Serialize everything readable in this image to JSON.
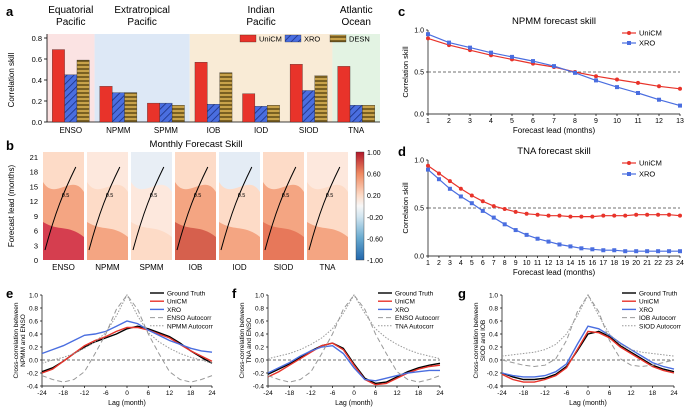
{
  "colors": {
    "unicm": "#e8332a",
    "xro": "#4a6ee0",
    "desn": "#c8a24a",
    "truth": "#000000",
    "ref": "#999999"
  },
  "chart_data": [
    {
      "panel": "a",
      "type": "bar",
      "ylabel": "Correlation skill",
      "ylim": [
        0,
        0.8
      ],
      "yticks": [
        0,
        0.2,
        0.4,
        0.6,
        0.8
      ],
      "categories": [
        "ENSO",
        "NPMM",
        "SPMM",
        "IOB",
        "IOD",
        "SIOD",
        "TNA"
      ],
      "regions": [
        {
          "label": [
            "Equatorial",
            "Pacific"
          ],
          "from": 0,
          "to": 0,
          "color": "#fbe3e3"
        },
        {
          "label": [
            "Extratropical",
            "Pacific"
          ],
          "from": 1,
          "to": 2,
          "color": "#dde8f6"
        },
        {
          "label": [
            "Indian",
            "Pacific"
          ],
          "from": 3,
          "to": 5,
          "color": "#f9ebd6"
        },
        {
          "label": [
            "Atlantic",
            "Ocean"
          ],
          "from": 6,
          "to": 6,
          "color": "#e3f3e3"
        }
      ],
      "series": [
        {
          "name": "UniCM",
          "values": [
            0.69,
            0.34,
            0.18,
            0.57,
            0.27,
            0.55,
            0.53
          ]
        },
        {
          "name": "XRO",
          "values": [
            0.45,
            0.28,
            0.18,
            0.17,
            0.15,
            0.3,
            0.16
          ]
        },
        {
          "name": "DESN",
          "values": [
            0.59,
            0.28,
            0.16,
            0.47,
            0.16,
            0.44,
            0.16
          ]
        }
      ]
    },
    {
      "panel": "b",
      "type": "heatmap",
      "title": "Monthly Forecast Skill",
      "ylabel": "Forecast lead (months)",
      "yticks": [
        0,
        3,
        6,
        9,
        12,
        15,
        18,
        21
      ],
      "columns": [
        "ENSO",
        "NPMM",
        "SPMM",
        "IOB",
        "IOD",
        "SIOD",
        "TNA"
      ],
      "colorbar": {
        "range": [
          -1.0,
          1.0
        ],
        "ticks": [
          "1.00",
          "0.60",
          "0.20",
          "-0.20",
          "-0.60",
          "-1.00"
        ]
      },
      "contour_labels": [
        "0.5",
        "0.5",
        "0.5",
        "0.5",
        "0.5",
        "0.5",
        "0.5"
      ]
    },
    {
      "panel": "c",
      "type": "line",
      "title": "NPMM forecast skill",
      "xlabel": "Forecast lead (months)",
      "ylabel": "Correlation skill",
      "x": [
        1,
        2,
        3,
        4,
        5,
        6,
        7,
        8,
        9,
        10,
        11,
        12,
        13
      ],
      "ylim": [
        0,
        1.0
      ],
      "yticks": [
        0.0,
        0.5,
        1.0
      ],
      "ref_line": 0.5,
      "series": [
        {
          "name": "UniCM",
          "values": [
            0.9,
            0.82,
            0.76,
            0.7,
            0.65,
            0.6,
            0.56,
            0.5,
            0.45,
            0.41,
            0.37,
            0.33,
            0.3
          ]
        },
        {
          "name": "XRO",
          "values": [
            0.95,
            0.85,
            0.79,
            0.73,
            0.68,
            0.63,
            0.57,
            0.49,
            0.4,
            0.32,
            0.25,
            0.17,
            0.1
          ]
        }
      ]
    },
    {
      "panel": "d",
      "type": "line",
      "title": "TNA forecast skill",
      "xlabel": "Forecast lead (months)",
      "ylabel": "Correlation skill",
      "x": [
        1,
        2,
        3,
        4,
        5,
        6,
        7,
        8,
        9,
        10,
        11,
        12,
        13,
        14,
        15,
        16,
        17,
        18,
        19,
        20,
        21,
        22,
        23,
        24
      ],
      "ylim": [
        0,
        1.0
      ],
      "yticks": [
        0.0,
        0.5,
        1.0
      ],
      "ref_line": 0.5,
      "series": [
        {
          "name": "UniCM",
          "values": [
            0.94,
            0.86,
            0.78,
            0.7,
            0.63,
            0.57,
            0.52,
            0.49,
            0.46,
            0.44,
            0.43,
            0.42,
            0.42,
            0.41,
            0.41,
            0.41,
            0.42,
            0.42,
            0.42,
            0.43,
            0.43,
            0.43,
            0.43,
            0.42
          ]
        },
        {
          "name": "XRO",
          "values": [
            0.9,
            0.8,
            0.7,
            0.62,
            0.55,
            0.47,
            0.4,
            0.33,
            0.27,
            0.22,
            0.18,
            0.15,
            0.12,
            0.1,
            0.08,
            0.07,
            0.06,
            0.06,
            0.05,
            0.05,
            0.05,
            0.05,
            0.05,
            0.05
          ]
        }
      ]
    },
    {
      "panel": "e",
      "type": "line",
      "xlabel": "Lag (month)",
      "ylabel": [
        "Cross-correlation between",
        "NPMM and ENSO"
      ],
      "xlim": [
        -24,
        24
      ],
      "xticks": [
        -24,
        -18,
        -12,
        -6,
        0,
        6,
        12,
        18,
        24
      ],
      "ylim": [
        -0.4,
        1.0
      ],
      "yticks": [
        -0.4,
        -0.2,
        0.0,
        0.2,
        0.4,
        0.6,
        0.8,
        1.0
      ],
      "x": [
        -24,
        -21,
        -18,
        -15,
        -12,
        -9,
        -6,
        -3,
        0,
        3,
        6,
        9,
        12,
        15,
        18,
        21,
        24
      ],
      "series": [
        {
          "name": "Ground Truth",
          "values": [
            -0.18,
            -0.12,
            -0.02,
            0.1,
            0.2,
            0.28,
            0.34,
            0.4,
            0.48,
            0.52,
            0.48,
            0.42,
            0.36,
            0.26,
            0.14,
            0.04,
            -0.05
          ]
        },
        {
          "name": "UniCM",
          "values": [
            -0.2,
            -0.14,
            -0.02,
            0.1,
            0.22,
            0.3,
            0.36,
            0.44,
            0.5,
            0.5,
            0.46,
            0.4,
            0.34,
            0.24,
            0.14,
            0.06,
            -0.02
          ]
        },
        {
          "name": "XRO",
          "values": [
            0.1,
            0.16,
            0.22,
            0.3,
            0.38,
            0.4,
            0.44,
            0.52,
            0.6,
            0.56,
            0.46,
            0.38,
            0.3,
            0.24,
            0.18,
            0.14,
            0.12
          ]
        },
        {
          "name": "ENSO Autocorr",
          "values": [
            -0.24,
            -0.3,
            -0.34,
            -0.3,
            -0.18,
            0.1,
            0.4,
            0.78,
            1.0,
            0.78,
            0.4,
            0.1,
            -0.18,
            -0.3,
            -0.34,
            -0.3,
            -0.24
          ]
        },
        {
          "name": "NPMM Autocorr",
          "values": [
            -0.05,
            0.0,
            0.04,
            0.1,
            0.18,
            0.28,
            0.42,
            0.68,
            1.0,
            0.68,
            0.42,
            0.28,
            0.18,
            0.1,
            0.04,
            0.0,
            -0.05
          ]
        }
      ]
    },
    {
      "panel": "f",
      "type": "line",
      "xlabel": "Lag (month)",
      "ylabel": [
        "Cross-correlation between",
        "TNA and ENSO"
      ],
      "xlim": [
        -24,
        24
      ],
      "xticks": [
        -24,
        -18,
        -12,
        -6,
        0,
        6,
        12,
        18,
        24
      ],
      "ylim": [
        -0.4,
        1.0
      ],
      "yticks": [
        -0.4,
        -0.2,
        0.0,
        0.2,
        0.4,
        0.6,
        0.8,
        1.0
      ],
      "x": [
        -24,
        -21,
        -18,
        -15,
        -12,
        -9,
        -6,
        -3,
        0,
        3,
        6,
        9,
        12,
        15,
        18,
        21,
        24
      ],
      "series": [
        {
          "name": "Ground Truth",
          "values": [
            -0.22,
            -0.14,
            -0.06,
            0.04,
            0.14,
            0.22,
            0.26,
            0.18,
            -0.06,
            -0.28,
            -0.36,
            -0.34,
            -0.26,
            -0.18,
            -0.12,
            -0.08,
            -0.05
          ]
        },
        {
          "name": "UniCM",
          "values": [
            -0.26,
            -0.18,
            -0.08,
            0.02,
            0.12,
            0.22,
            0.26,
            0.16,
            -0.08,
            -0.3,
            -0.38,
            -0.36,
            -0.28,
            -0.2,
            -0.14,
            -0.1,
            -0.08
          ]
        },
        {
          "name": "XRO",
          "values": [
            -0.2,
            -0.12,
            -0.04,
            0.06,
            0.14,
            0.2,
            0.22,
            0.1,
            -0.12,
            -0.3,
            -0.32,
            -0.28,
            -0.24,
            -0.2,
            -0.18,
            -0.16,
            -0.16
          ]
        },
        {
          "name": "ENSO Autocorr",
          "values": [
            -0.24,
            -0.3,
            -0.34,
            -0.3,
            -0.18,
            0.1,
            0.4,
            0.78,
            1.0,
            0.78,
            0.4,
            0.1,
            -0.18,
            -0.3,
            -0.34,
            -0.3,
            -0.24
          ]
        },
        {
          "name": "TNA Autocorr",
          "values": [
            0.02,
            0.06,
            0.1,
            0.16,
            0.24,
            0.34,
            0.48,
            0.72,
            1.0,
            0.72,
            0.48,
            0.34,
            0.24,
            0.16,
            0.1,
            0.06,
            0.02
          ]
        }
      ]
    },
    {
      "panel": "g",
      "type": "line",
      "xlabel": "Lag (month)",
      "ylabel": [
        "Cross-correlation between",
        "SIOD and IOB"
      ],
      "xlim": [
        -24,
        24
      ],
      "xticks": [
        -24,
        -18,
        -12,
        -6,
        0,
        6,
        12,
        18,
        24
      ],
      "ylim": [
        -0.4,
        1.0
      ],
      "yticks": [
        -0.4,
        -0.2,
        0.0,
        0.2,
        0.4,
        0.6,
        0.8,
        1.0
      ],
      "x": [
        -24,
        -21,
        -18,
        -15,
        -12,
        -9,
        -6,
        -3,
        0,
        3,
        6,
        9,
        12,
        15,
        18,
        21,
        24
      ],
      "series": [
        {
          "name": "Ground Truth",
          "values": [
            -0.2,
            -0.26,
            -0.3,
            -0.3,
            -0.28,
            -0.22,
            -0.1,
            0.14,
            0.4,
            0.44,
            0.36,
            0.22,
            0.12,
            0.02,
            -0.08,
            -0.14,
            -0.18
          ]
        },
        {
          "name": "UniCM",
          "values": [
            -0.22,
            -0.3,
            -0.34,
            -0.34,
            -0.3,
            -0.24,
            -0.12,
            0.16,
            0.44,
            0.42,
            0.34,
            0.2,
            0.1,
            0.0,
            -0.1,
            -0.16,
            -0.2
          ]
        },
        {
          "name": "XRO",
          "values": [
            -0.2,
            -0.24,
            -0.26,
            -0.26,
            -0.24,
            -0.18,
            -0.06,
            0.24,
            0.52,
            0.48,
            0.38,
            0.26,
            0.16,
            0.06,
            -0.04,
            -0.1,
            -0.14
          ]
        },
        {
          "name": "IOB Autocorr",
          "values": [
            0.0,
            -0.04,
            -0.08,
            -0.1,
            -0.08,
            0.02,
            0.3,
            0.74,
            1.0,
            0.74,
            0.3,
            0.02,
            -0.08,
            -0.1,
            -0.08,
            -0.04,
            0.0
          ]
        },
        {
          "name": "SIOD Autocorr",
          "values": [
            0.06,
            0.08,
            0.1,
            0.12,
            0.16,
            0.24,
            0.4,
            0.68,
            1.0,
            0.68,
            0.4,
            0.24,
            0.16,
            0.12,
            0.1,
            0.08,
            0.06
          ]
        }
      ]
    }
  ],
  "panel_letters": [
    "a",
    "b",
    "c",
    "d",
    "e",
    "f",
    "g"
  ]
}
